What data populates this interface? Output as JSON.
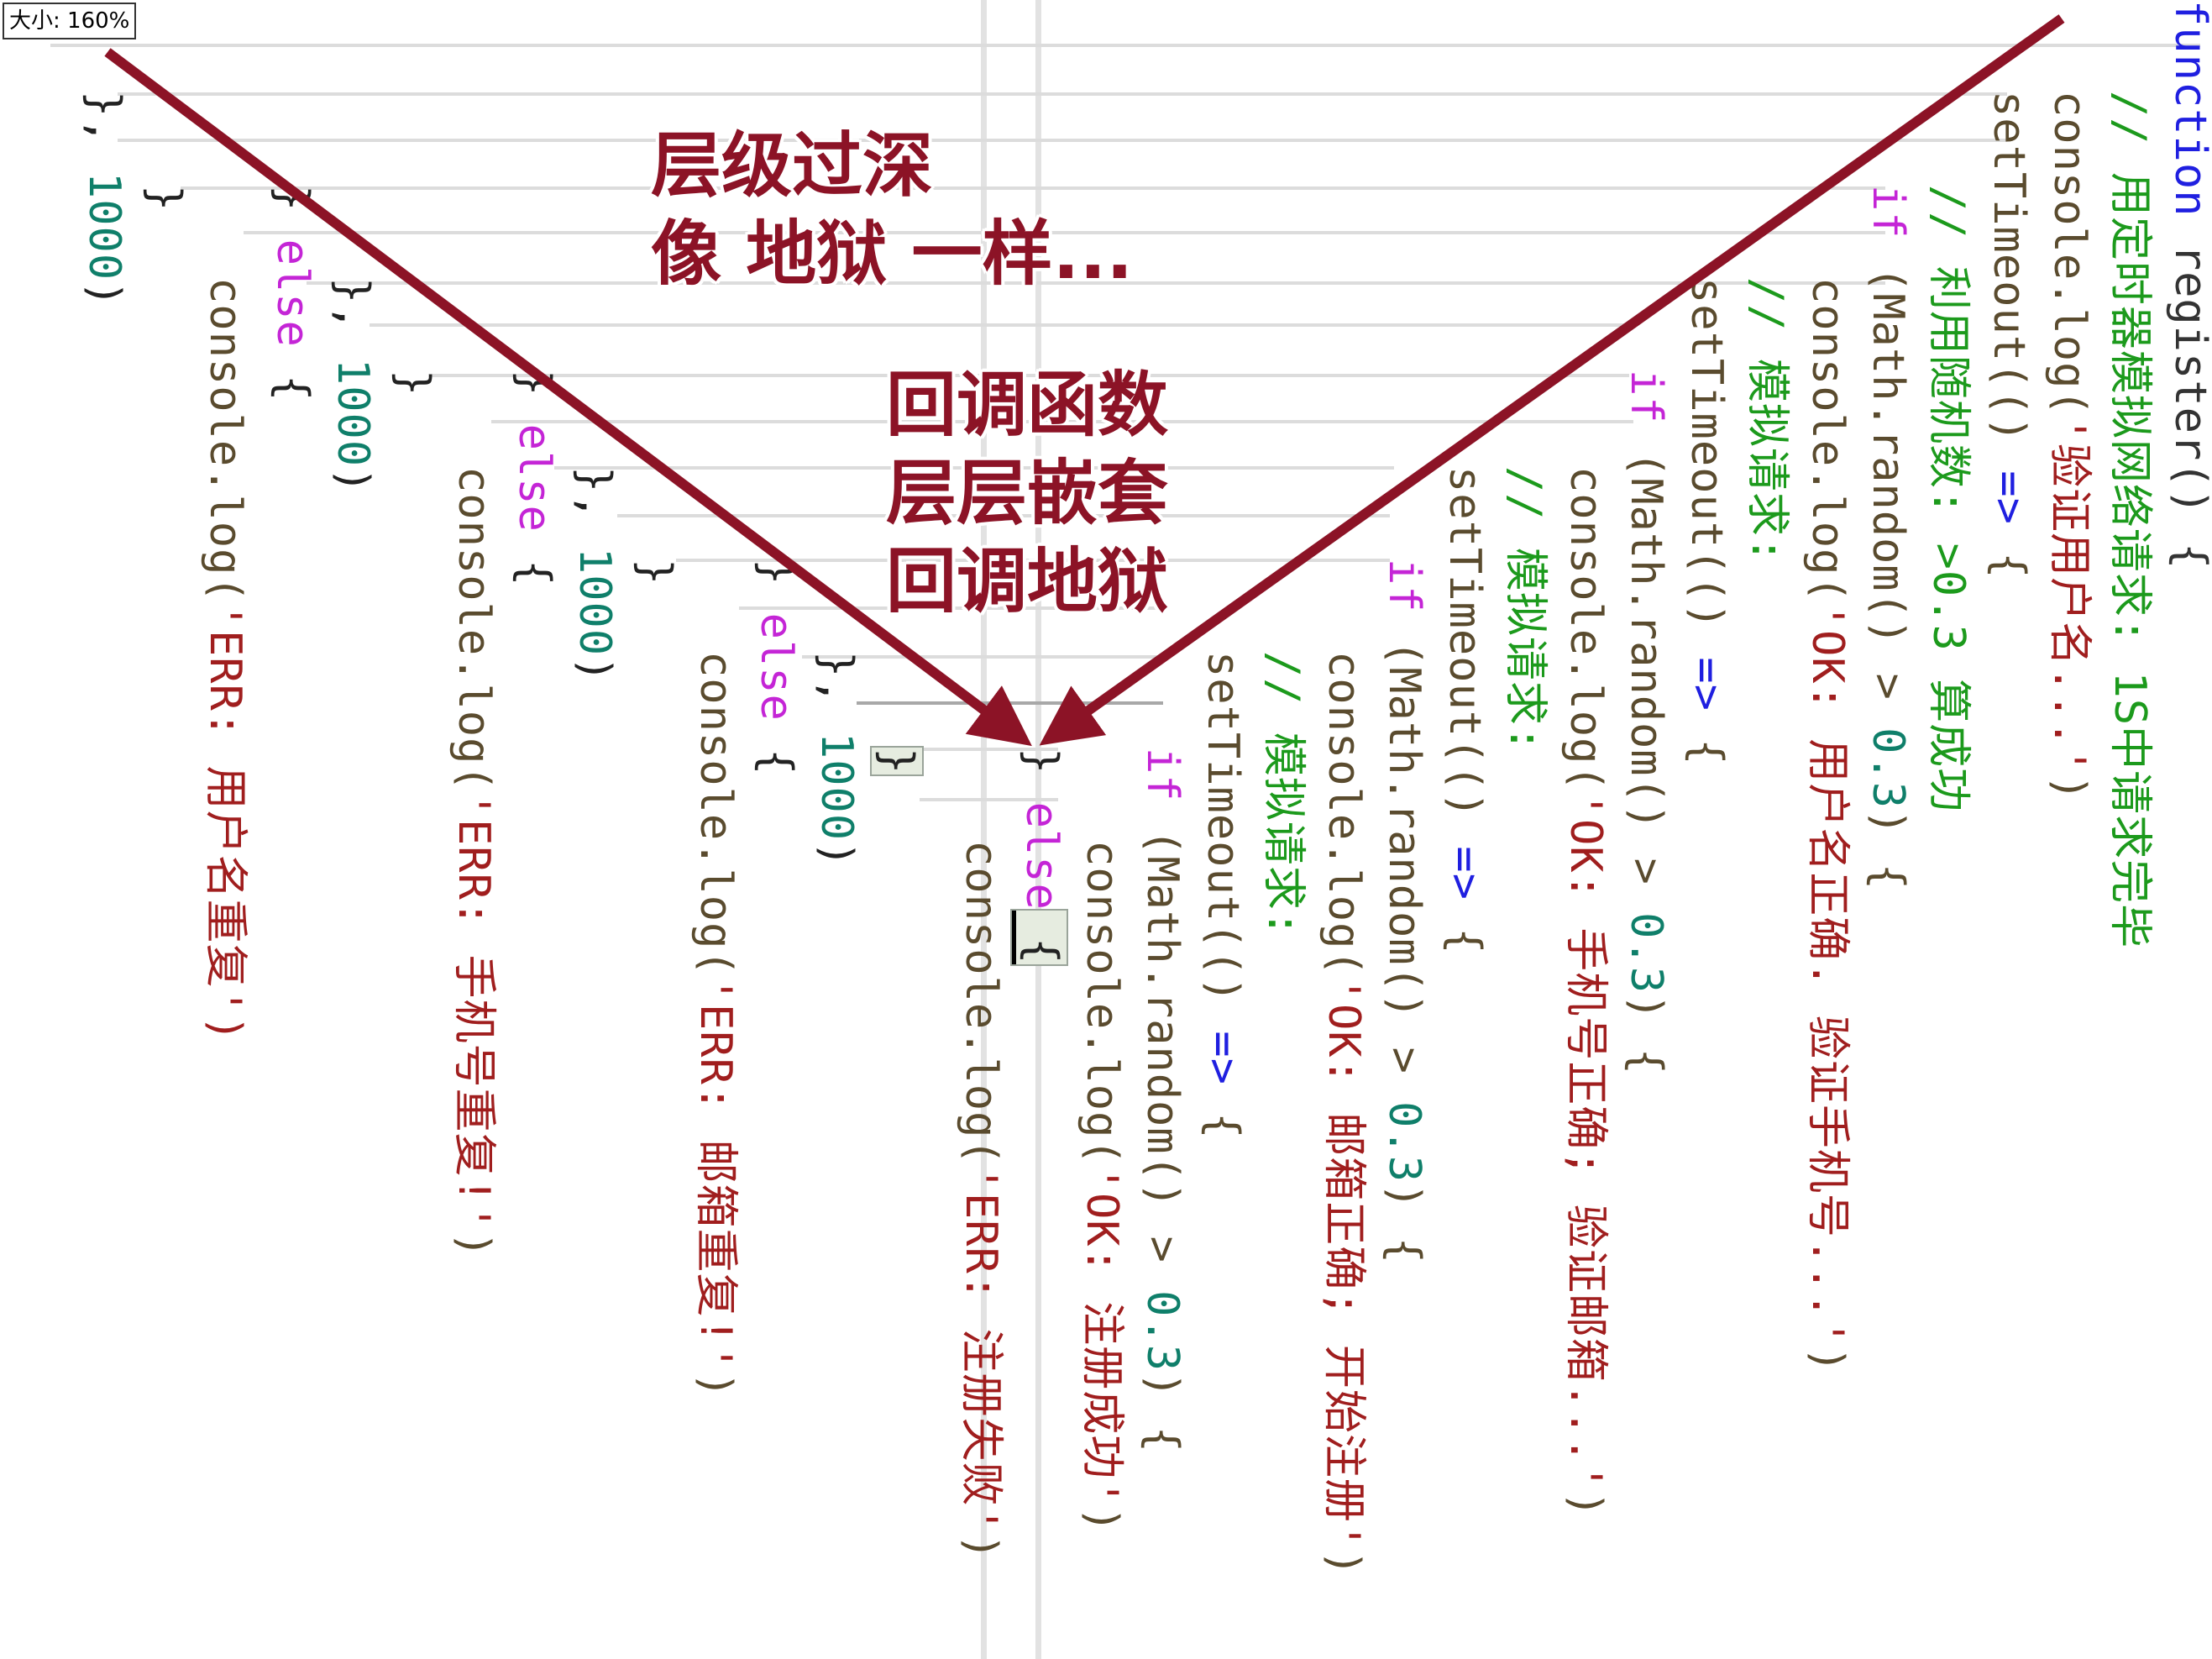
{
  "zoom_indicator": "大小: 160%",
  "annotations": {
    "top_line1": "层级过深",
    "top_line2": "像 地狱 一样...",
    "mid_line1": "回调函数",
    "mid_line2": "层层嵌套",
    "mid_line3": "回调地狱"
  },
  "code": {
    "l1": {
      "kw": "function",
      "rest": " register() {"
    },
    "l2": {
      "cmt": "// 用定时器模拟网络请求: 1S中请求完毕"
    },
    "l3": {
      "a": "console.log(",
      "s": "'验证用户名...'",
      "b": ")"
    },
    "l4": {
      "a": "setTimeout(() ",
      "op": "=>",
      "b": " {"
    },
    "l5": {
      "cmt": "// 利用随机数: >0.3 算成功"
    },
    "l6": {
      "ctl": "if",
      "a": " (Math.random() > ",
      "n": "0.3",
      "b": ") {"
    },
    "l7": {
      "a": "console.log(",
      "s": "'OK: 用户名正确. 验证手机号...'",
      "b": ")"
    },
    "l8": {
      "cmt": "// 模拟请求:"
    },
    "l9": {
      "a": "setTimeout(() ",
      "op": "=>",
      "b": " {"
    },
    "l10": {
      "ctl": "if",
      "a": " (Math.random() > ",
      "n": "0.3",
      "b": ") {"
    },
    "l11": {
      "a": "console.log(",
      "s": "'OK: 手机号正确; 验证邮箱...'",
      "b": ")"
    },
    "l12": {
      "cmt": "// 模拟请求:"
    },
    "l13": {
      "a": "setTimeout(() ",
      "op": "=>",
      "b": " {"
    },
    "l14": {
      "ctl": "if",
      "a": " (Math.random() > ",
      "n": "0.3",
      "b": ") {"
    },
    "l15": {
      "a": "console.log(",
      "s": "'OK: 邮箱正确; 开始注册'",
      "b": ")"
    },
    "l16": {
      "cmt": "// 模拟请求:"
    },
    "l17": {
      "a": "setTimeout(() ",
      "op": "=>",
      "b": " {"
    },
    "l18": {
      "ctl": "if",
      "a": " (Math.random() > ",
      "n": "0.3",
      "b": ") {"
    },
    "l19": {
      "a": "console.log(",
      "s": "'OK: 注册成功'",
      "b": ")"
    },
    "l20": {
      "a": "} ",
      "ctl": "else",
      "b": " {"
    },
    "l21": {
      "a": "console.log(",
      "s": "'ERR: 注册失败'",
      "b": ")"
    },
    "l22": {
      "a": "}"
    },
    "l23": {
      "a": "}, ",
      "n": "1000",
      "b": ")"
    },
    "l24": {
      "a": "} ",
      "ctl": "else",
      "b": " {"
    },
    "l25": {
      "a": "console.log(",
      "s": "'ERR: 邮箱重复!'",
      "b": ")"
    },
    "l26": {
      "a": "}"
    },
    "l27": {
      "a": "}, ",
      "n": "1000",
      "b": ")"
    },
    "l28": {
      "a": "} ",
      "ctl": "else",
      "b": " {"
    },
    "l29": {
      "a": "console.log(",
      "s": "'ERR: 手机号重复!'",
      "b": ")"
    },
    "l30": {
      "a": "}"
    },
    "l31": {
      "a": "}, ",
      "n": "1000",
      "b": ")"
    },
    "l32": {
      "a": "} ",
      "ctl": "else",
      "b": " {"
    },
    "l33": {
      "a": "console.log(",
      "s": "'ERR: 用户名重复')"
    },
    "l34": {
      "a": "}"
    },
    "l35": {
      "a": "}, ",
      "n": "1000",
      "b": ")"
    }
  }
}
